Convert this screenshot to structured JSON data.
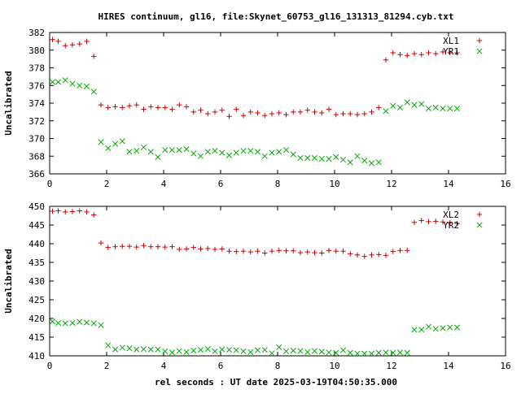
{
  "figure_title": "HIRES continuum, gl16, file:Skynet_60753_gl16_131313_81294.cyb.txt",
  "xlabel": "rel seconds : UT date 2025-03-19T04:50:35.000",
  "colors": {
    "plus": "#cc0000",
    "cross": "#00aa00",
    "axes": "#000000"
  },
  "chart_data": [
    {
      "type": "scatter",
      "ylabel": "Uncalibrated",
      "xlim": [
        0,
        16
      ],
      "ylim": [
        366,
        382
      ],
      "xticks": [
        0,
        2,
        4,
        6,
        8,
        10,
        12,
        14,
        16
      ],
      "yticks": [
        366,
        368,
        370,
        372,
        374,
        376,
        378,
        380,
        382
      ],
      "legend_position": "top-right",
      "series": [
        {
          "name": "XL1",
          "marker": "plus",
          "x": [
            0.1,
            0.3,
            0.55,
            0.8,
            1.05,
            1.3,
            1.55,
            1.8,
            2.05,
            2.3,
            2.55,
            2.8,
            3.05,
            3.3,
            3.55,
            3.8,
            4.05,
            4.3,
            4.55,
            4.8,
            5.05,
            5.3,
            5.55,
            5.8,
            6.05,
            6.3,
            6.55,
            6.8,
            7.05,
            7.3,
            7.55,
            7.8,
            8.05,
            8.3,
            8.55,
            8.8,
            9.05,
            9.3,
            9.55,
            9.8,
            10.05,
            10.3,
            10.55,
            10.8,
            11.05,
            11.3,
            11.55,
            11.8,
            12.05,
            12.3,
            12.55,
            12.8,
            13.05,
            13.3,
            13.55,
            13.8,
            14.05,
            14.3
          ],
          "y": [
            381.2,
            381.0,
            380.5,
            380.6,
            380.7,
            381.0,
            379.3,
            373.8,
            373.5,
            373.6,
            373.5,
            373.7,
            373.8,
            373.3,
            373.6,
            373.5,
            373.5,
            373.3,
            373.8,
            373.6,
            373.0,
            373.2,
            372.8,
            373.0,
            373.2,
            372.5,
            373.3,
            372.6,
            373.0,
            372.9,
            372.6,
            372.8,
            372.9,
            372.7,
            373.0,
            373.0,
            373.2,
            373.0,
            372.9,
            373.3,
            372.7,
            372.8,
            372.8,
            372.7,
            372.8,
            373.0,
            373.5,
            378.9,
            379.7,
            379.5,
            379.4,
            379.6,
            379.5,
            379.7,
            379.6,
            379.8,
            379.7,
            379.7
          ],
          "x_display_note": ""
        },
        {
          "name": "YR1",
          "marker": "cross",
          "x": [
            0.1,
            0.3,
            0.55,
            0.8,
            1.05,
            1.3,
            1.55,
            1.8,
            2.05,
            2.3,
            2.55,
            2.8,
            3.05,
            3.3,
            3.55,
            3.8,
            4.05,
            4.3,
            4.55,
            4.8,
            5.05,
            5.3,
            5.55,
            5.8,
            6.05,
            6.3,
            6.55,
            6.8,
            7.05,
            7.3,
            7.55,
            7.8,
            8.05,
            8.3,
            8.55,
            8.8,
            9.05,
            9.3,
            9.55,
            9.8,
            10.05,
            10.3,
            10.55,
            10.8,
            11.05,
            11.3,
            11.55,
            11.8,
            12.05,
            12.3,
            12.55,
            12.8,
            13.05,
            13.3,
            13.55,
            13.8,
            14.05,
            14.3
          ],
          "y": [
            376.4,
            376.4,
            376.6,
            376.2,
            376.0,
            375.9,
            375.3,
            369.6,
            368.9,
            369.4,
            369.7,
            368.5,
            368.6,
            369.0,
            368.5,
            367.9,
            368.7,
            368.7,
            368.7,
            368.8,
            368.3,
            368.0,
            368.5,
            368.6,
            368.4,
            368.1,
            368.4,
            368.6,
            368.6,
            368.5,
            368.0,
            368.4,
            368.5,
            368.7,
            368.2,
            367.8,
            367.8,
            367.8,
            367.7,
            367.7,
            367.9,
            367.6,
            367.3,
            368.0,
            367.5,
            367.2,
            367.3,
            373.1,
            373.7,
            373.5,
            374.1,
            373.8,
            373.9,
            373.4,
            373.5,
            373.4,
            373.4,
            373.4
          ],
          "x_display_note": ""
        }
      ]
    },
    {
      "type": "scatter",
      "ylabel": "Uncalibrated",
      "xlim": [
        0,
        16
      ],
      "ylim": [
        410,
        450
      ],
      "xticks": [
        0,
        2,
        4,
        6,
        8,
        10,
        12,
        14,
        16
      ],
      "yticks": [
        410,
        415,
        420,
        425,
        430,
        435,
        440,
        445,
        450
      ],
      "legend_position": "top-right",
      "series": [
        {
          "name": "XL2",
          "marker": "plus",
          "x": [
            0.1,
            0.3,
            0.55,
            0.8,
            1.05,
            1.3,
            1.55,
            1.8,
            2.05,
            2.3,
            2.55,
            2.8,
            3.05,
            3.3,
            3.55,
            3.8,
            4.05,
            4.3,
            4.55,
            4.8,
            5.05,
            5.3,
            5.55,
            5.8,
            6.05,
            6.3,
            6.55,
            6.8,
            7.05,
            7.3,
            7.55,
            7.8,
            8.05,
            8.3,
            8.55,
            8.8,
            9.05,
            9.3,
            9.55,
            9.8,
            10.05,
            10.3,
            10.55,
            10.8,
            11.05,
            11.3,
            11.55,
            11.8,
            12.05,
            12.3,
            12.55,
            12.8,
            13.05,
            13.3,
            13.55,
            13.8,
            14.05,
            14.3
          ],
          "y": [
            448.7,
            448.8,
            448.5,
            448.6,
            448.8,
            448.5,
            447.7,
            440.2,
            439.0,
            439.2,
            439.3,
            439.3,
            439.1,
            439.5,
            439.2,
            439.2,
            439.1,
            439.2,
            438.5,
            438.6,
            439.0,
            438.6,
            438.7,
            438.5,
            438.6,
            438.0,
            437.9,
            438.0,
            437.8,
            438.0,
            437.5,
            438.0,
            438.2,
            438.1,
            438.1,
            437.6,
            437.8,
            437.6,
            437.5,
            438.2,
            438.0,
            438.0,
            437.3,
            437.0,
            436.6,
            437.0,
            437.1,
            436.9,
            437.9,
            438.2,
            438.2,
            445.7,
            446.2,
            445.9,
            446.0,
            445.8,
            445.6,
            445.4
          ],
          "x_display_note": ""
        },
        {
          "name": "YR2",
          "marker": "cross",
          "x": [
            0.1,
            0.3,
            0.55,
            0.8,
            1.05,
            1.3,
            1.55,
            1.8,
            2.05,
            2.3,
            2.55,
            2.8,
            3.05,
            3.3,
            3.55,
            3.8,
            4.05,
            4.3,
            4.55,
            4.8,
            5.05,
            5.3,
            5.55,
            5.8,
            6.05,
            6.3,
            6.55,
            6.8,
            7.05,
            7.3,
            7.55,
            7.8,
            8.05,
            8.3,
            8.55,
            8.8,
            9.05,
            9.3,
            9.55,
            9.8,
            10.05,
            10.3,
            10.55,
            10.8,
            11.05,
            11.3,
            11.55,
            11.8,
            12.05,
            12.3,
            12.55,
            12.8,
            13.05,
            13.3,
            13.55,
            13.8,
            14.05,
            14.3
          ],
          "y": [
            419.2,
            418.8,
            418.7,
            418.8,
            419.1,
            418.9,
            418.7,
            418.2,
            412.8,
            411.7,
            412.2,
            412.0,
            411.7,
            411.8,
            411.7,
            411.7,
            411.2,
            410.9,
            411.3,
            411.0,
            411.4,
            411.6,
            411.8,
            411.2,
            411.7,
            411.6,
            411.5,
            411.2,
            411.0,
            411.5,
            411.6,
            410.7,
            412.3,
            411.2,
            411.4,
            411.3,
            411.0,
            411.3,
            411.1,
            410.9,
            410.8,
            411.5,
            410.8,
            410.6,
            410.6,
            410.6,
            410.8,
            410.9,
            410.8,
            410.9,
            410.8,
            417.0,
            417.0,
            417.8,
            417.2,
            417.4,
            417.6,
            417.6
          ],
          "x_display_note": ""
        }
      ]
    }
  ]
}
